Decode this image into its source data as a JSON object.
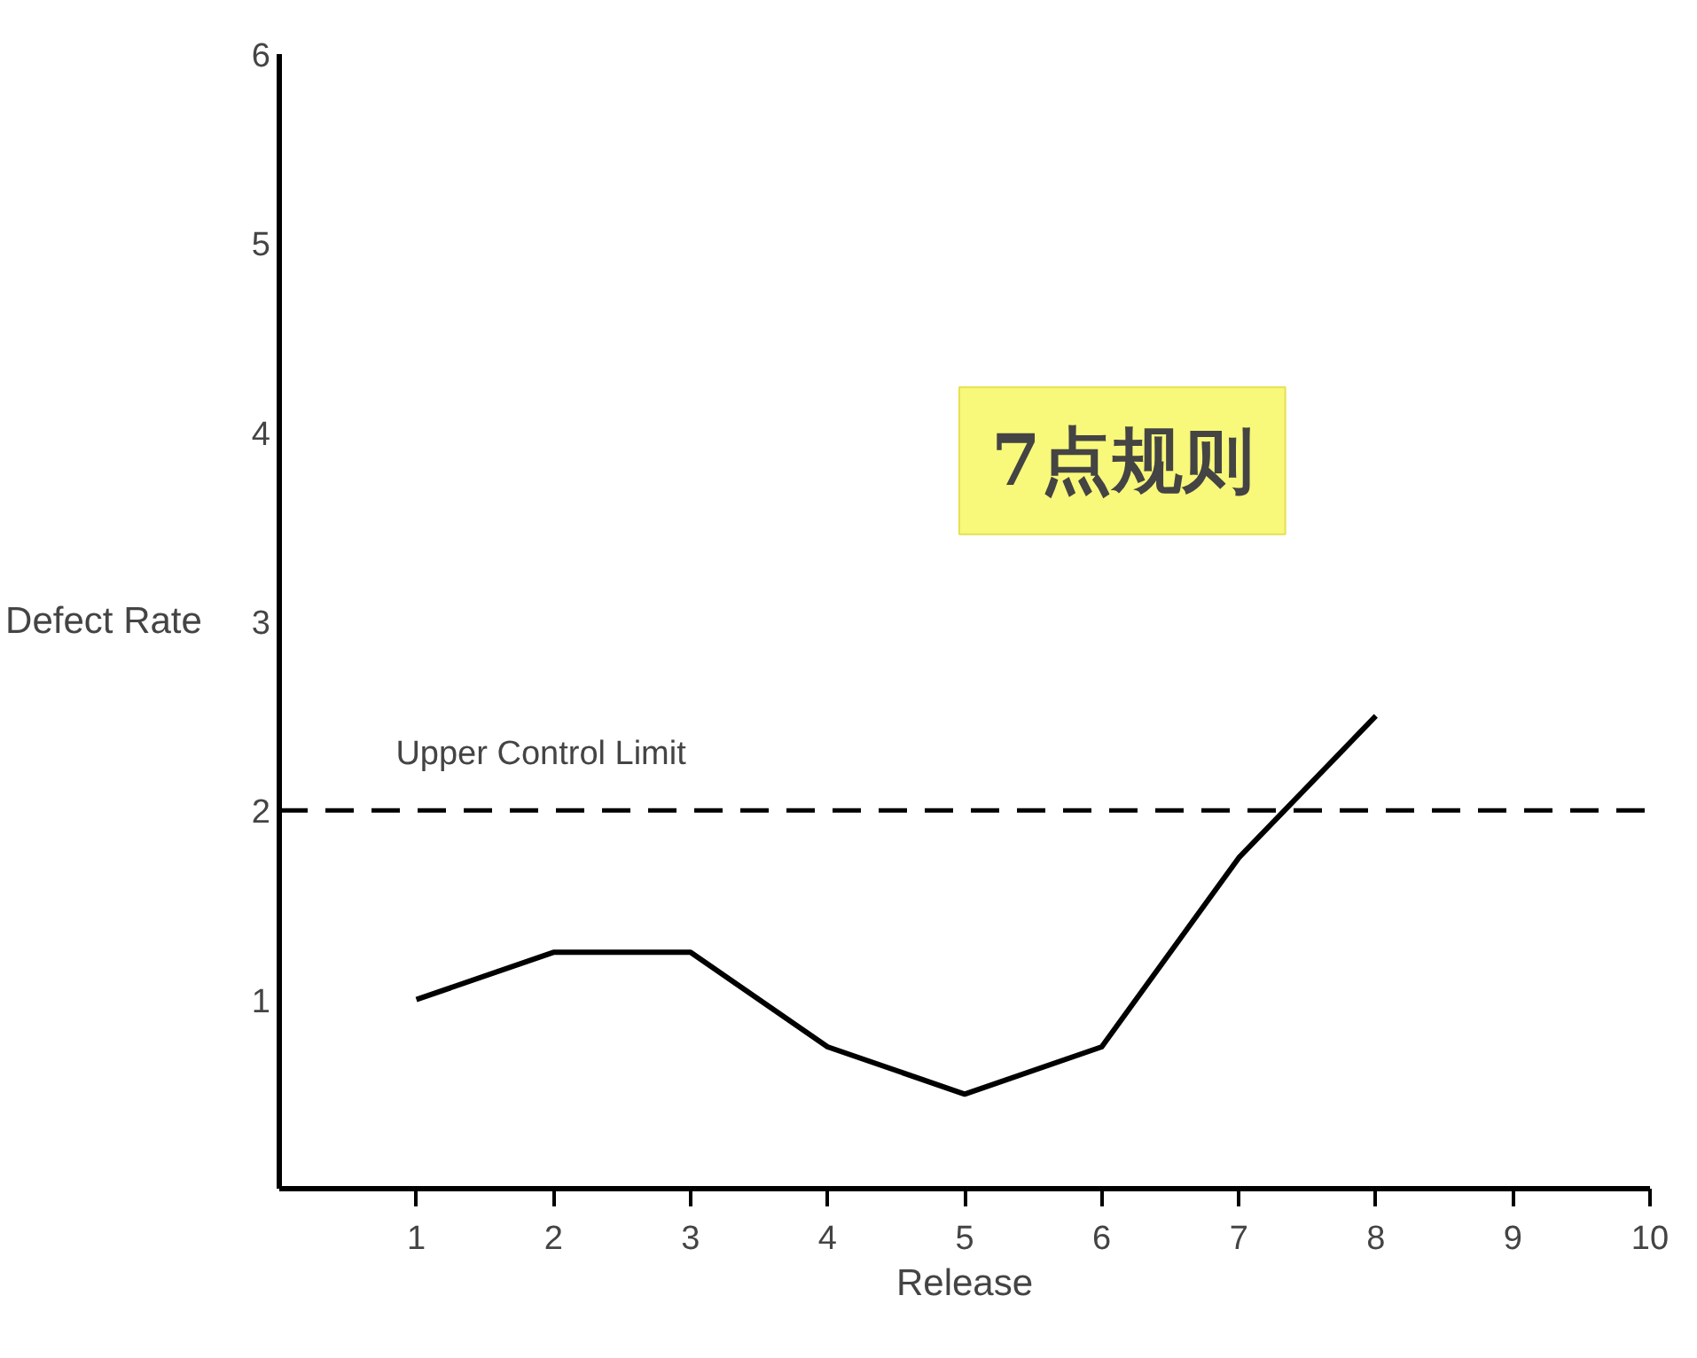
{
  "chart_data": {
    "type": "line",
    "xlabel": "Release",
    "ylabel": "Defect Rate",
    "x": [
      1,
      2,
      3,
      4,
      5,
      6,
      7,
      8
    ],
    "series": [
      {
        "color": "#000000",
        "values": [
          1,
          1.25,
          1.25,
          0.75,
          0.5,
          0.75,
          1.75,
          2.5
        ]
      }
    ],
    "xlim": [
      0,
      10
    ],
    "xticks": [
      1,
      2,
      3,
      4,
      5,
      6,
      7,
      8,
      9,
      10
    ],
    "ylim": [
      0,
      6
    ],
    "yticks": [
      1,
      2,
      3,
      4,
      5,
      6
    ],
    "ref_lines": [
      {
        "axis": "y",
        "value": 2,
        "label": "Upper Control Limit",
        "color": "#000000",
        "line_style": "dashed"
      }
    ],
    "annotations": [
      "7点规则"
    ],
    "grid": false,
    "marker": "none",
    "line_style": "solid"
  }
}
